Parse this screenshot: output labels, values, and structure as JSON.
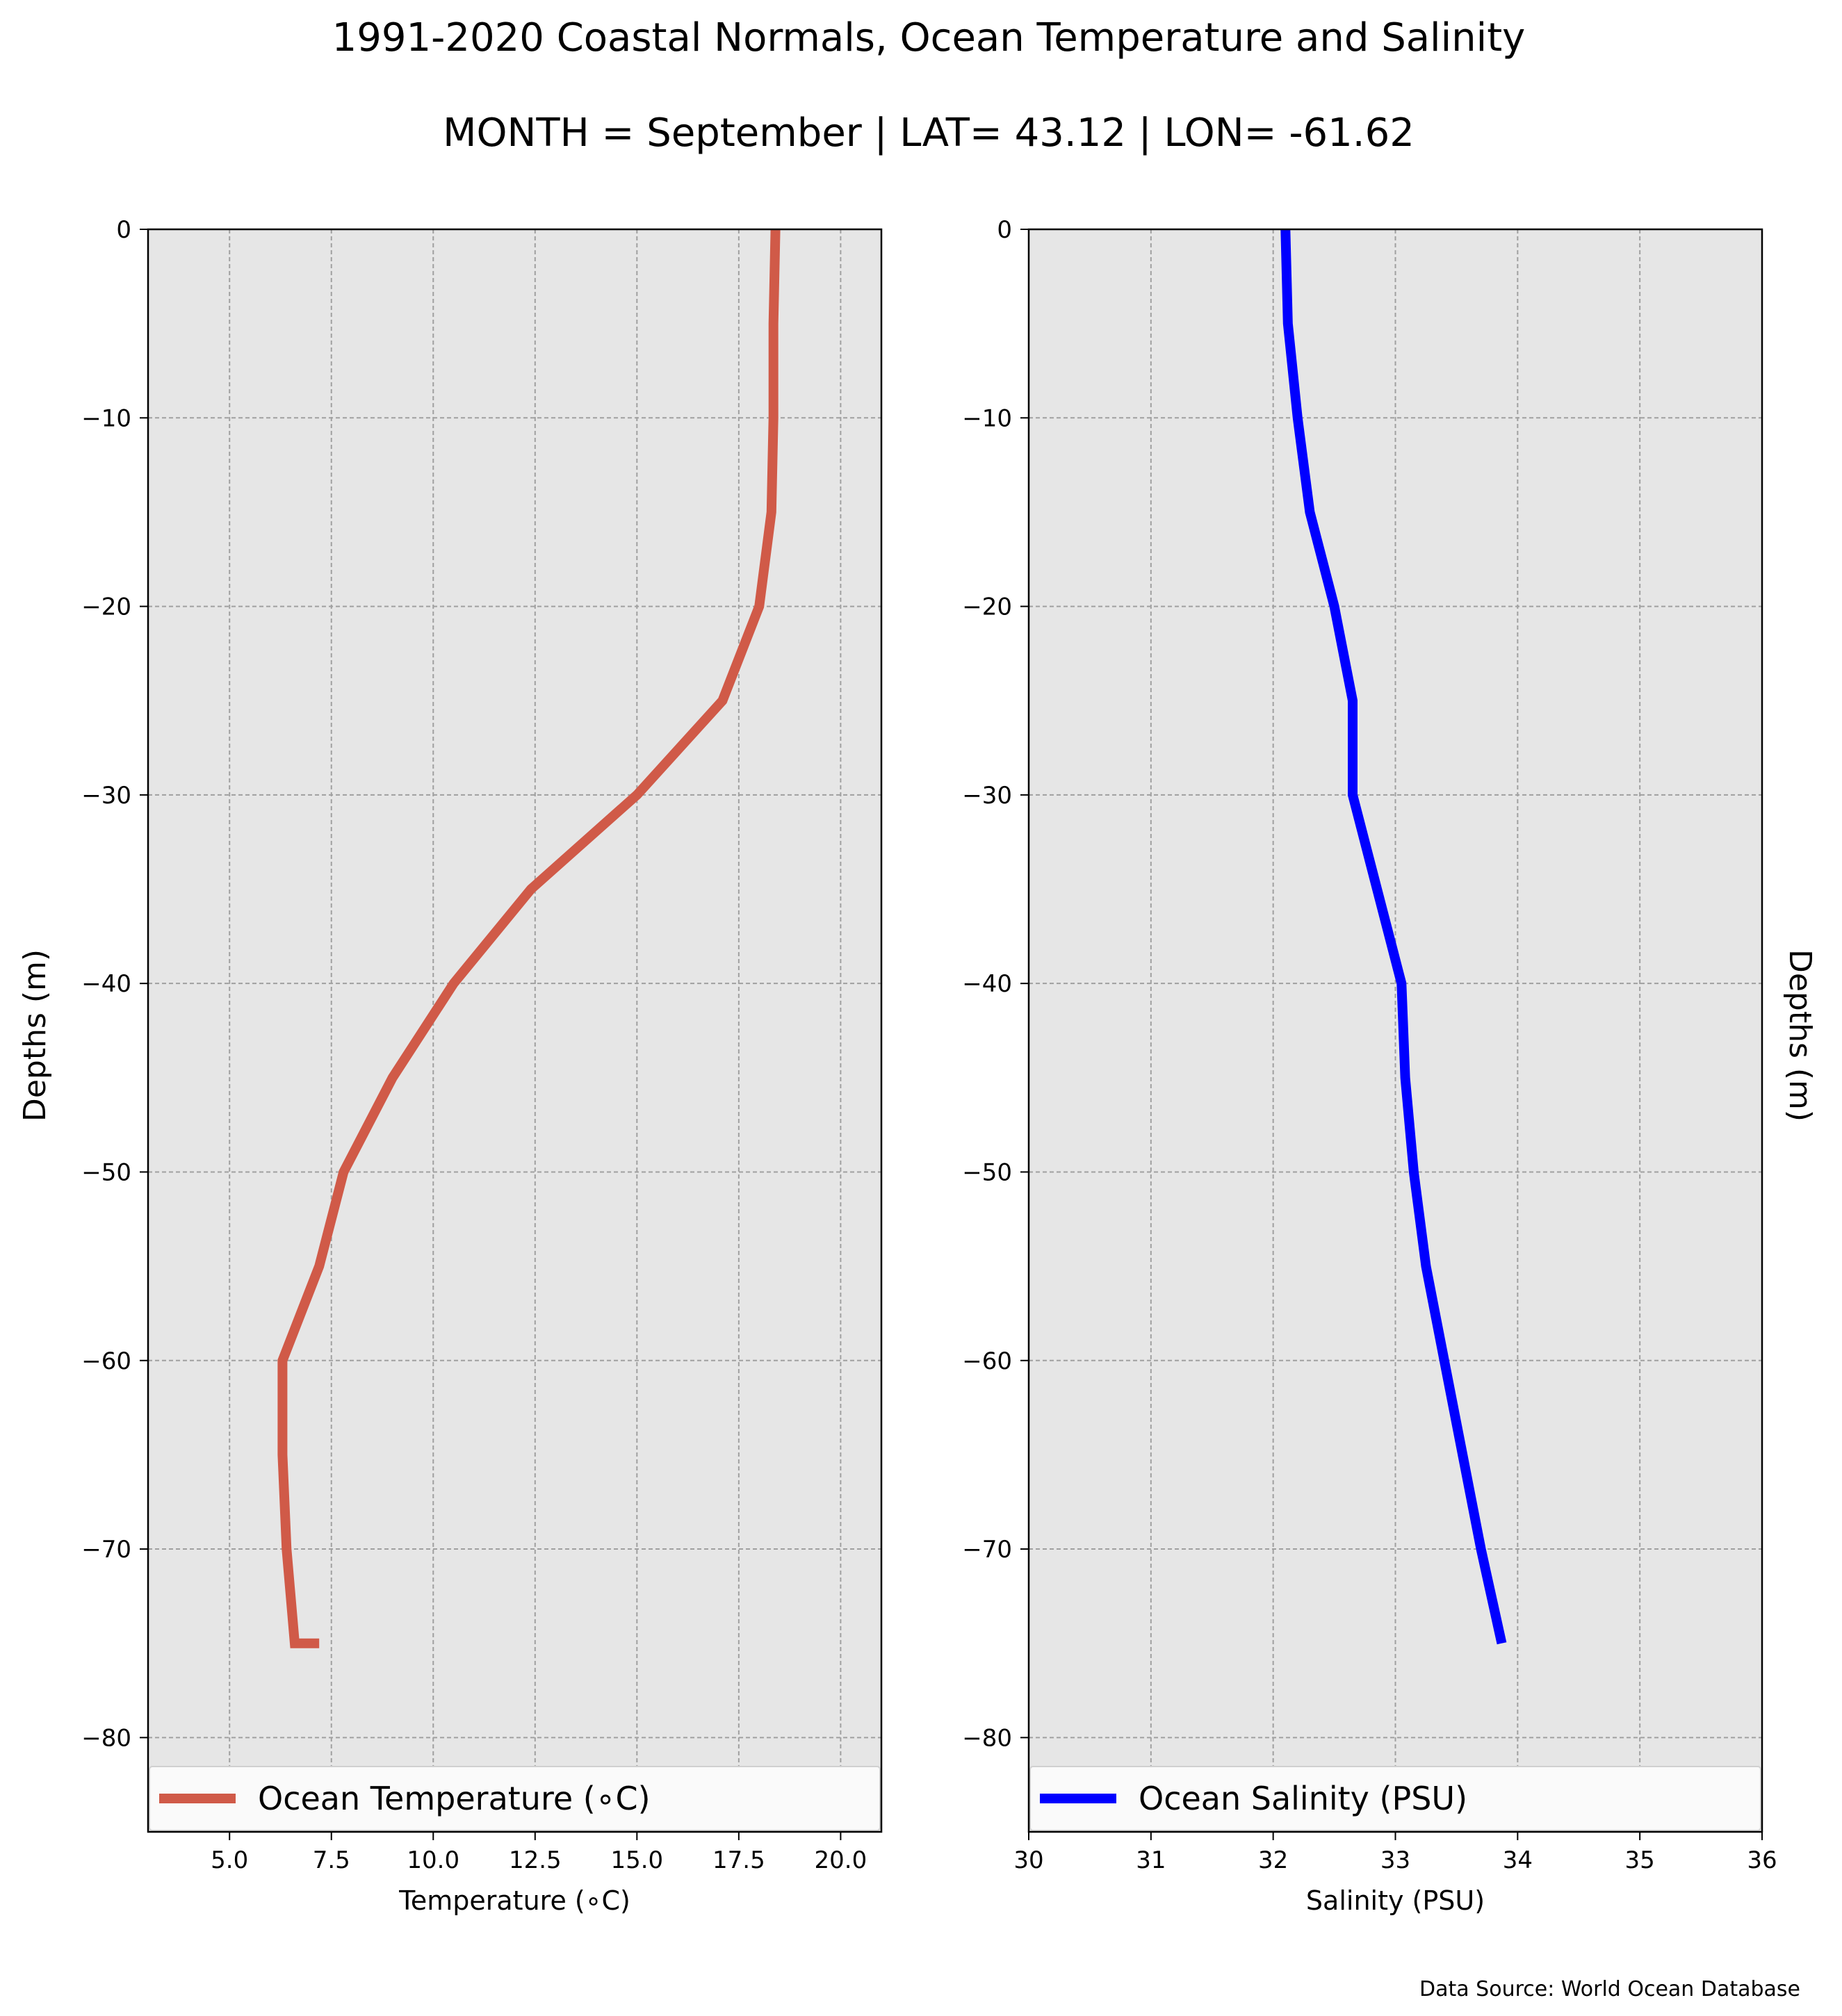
{
  "figure": {
    "title_line1": "1991-2020 Coastal Normals, Ocean Temperature and Salinity",
    "title_line2": "MONTH = September | LAT= 43.12 | LON= -61.62",
    "source": "Data Source: World Ocean Database"
  },
  "colors": {
    "temperature": "#d05a48",
    "salinity": "#0000ff",
    "plot_bg": "#e6e6e6",
    "grid": "#a0a0a0"
  },
  "chart_data": [
    {
      "type": "line",
      "id": "temperature",
      "series": [
        {
          "name": "Ocean Temperature ($^\\circ$C)",
          "x": [
            18.4,
            18.35,
            18.35,
            18.3,
            18.0,
            17.1,
            15.0,
            12.4,
            10.5,
            9.0,
            7.8,
            7.2,
            6.3,
            6.3,
            6.4,
            6.6,
            7.2
          ],
          "y": [
            0,
            -5,
            -10,
            -15,
            -20,
            -25,
            -30,
            -35,
            -40,
            -45,
            -50,
            -55,
            -60,
            -65,
            -70,
            -75,
            -75
          ]
        }
      ],
      "series_display_name": "Ocean Temperature (∘C)",
      "xlabel": "Temperature (∘C)",
      "ylabel": "Depths (m)",
      "xlim": [
        3,
        21
      ],
      "ylim": [
        -85,
        0
      ],
      "xticks": [
        5.0,
        7.5,
        10.0,
        12.5,
        15.0,
        17.5,
        20.0
      ],
      "xtick_labels": [
        "5.0",
        "7.5",
        "10.0",
        "12.5",
        "15.0",
        "17.5",
        "20.0"
      ],
      "yticks": [
        0,
        -10,
        -20,
        -30,
        -40,
        -50,
        -60,
        -70,
        -80
      ],
      "ytick_labels": [
        "0",
        "−10",
        "−20",
        "−30",
        "−40",
        "−50",
        "−60",
        "−70",
        "−80"
      ],
      "grid": true,
      "legend": "lower"
    },
    {
      "type": "line",
      "id": "salinity",
      "series": [
        {
          "name": "Ocean Salinity (PSU)",
          "x": [
            32.1,
            32.12,
            32.2,
            32.3,
            32.5,
            32.65,
            32.65,
            32.85,
            33.05,
            33.08,
            33.15,
            33.25,
            33.4,
            33.55,
            33.7,
            33.87
          ],
          "y": [
            0,
            -5,
            -10,
            -15,
            -20,
            -25,
            -30,
            -35,
            -40,
            -45,
            -50,
            -55,
            -60,
            -65,
            -70,
            -75
          ]
        }
      ],
      "xlabel": "Salinity (PSU)",
      "ylabel": "Depths (m)",
      "xlim": [
        30,
        36
      ],
      "ylim": [
        -85,
        0
      ],
      "xticks": [
        30,
        31,
        32,
        33,
        34,
        35,
        36
      ],
      "xtick_labels": [
        "30",
        "31",
        "32",
        "33",
        "34",
        "35",
        "36"
      ],
      "yticks": [
        0,
        -10,
        -20,
        -30,
        -40,
        -50,
        -60,
        -70,
        -80
      ],
      "ytick_labels": [
        "0",
        "−10",
        "−20",
        "−30",
        "−40",
        "−50",
        "−60",
        "−70",
        "−80"
      ],
      "grid": true,
      "legend": "lower"
    }
  ]
}
